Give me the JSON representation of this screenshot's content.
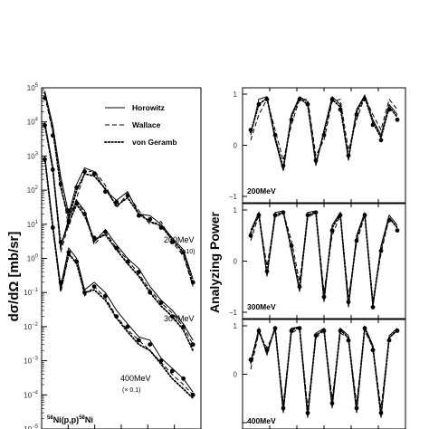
{
  "chart_data": [
    {
      "type": "line",
      "panel": "cross-section",
      "ylabel": "dσ/dΩ [mb/sr]",
      "yscale": "log",
      "ylim": [
        1e-05,
        100000.0
      ],
      "y_ticks": [
        {
          "base": "10",
          "exp": "5"
        },
        {
          "base": "10",
          "exp": "4"
        },
        {
          "base": "10",
          "exp": "3"
        },
        {
          "base": "10",
          "exp": "2"
        },
        {
          "base": "10",
          "exp": "1"
        },
        {
          "base": "10",
          "exp": "0"
        },
        {
          "base": "10",
          "exp": "−1"
        },
        {
          "base": "10",
          "exp": "−2"
        },
        {
          "base": "10",
          "exp": "−3"
        },
        {
          "base": "10",
          "exp": "−4"
        },
        {
          "base": "10",
          "exp": "−5"
        }
      ],
      "xlim": [
        0,
        1
      ],
      "reaction": {
        "pre": "58",
        "mid": "Ni(p,p)",
        "post": "58",
        "tail": "Ni"
      },
      "legend": {
        "placement": "top-right",
        "entries": [
          {
            "label": "Horowitz",
            "style": "solid"
          },
          {
            "label": "Wallace",
            "style": "dashed"
          },
          {
            "label": "von Geramb",
            "style": "dotted"
          }
        ]
      },
      "energy_labels": [
        {
          "text": "200MeV",
          "sub": "(×10)"
        },
        {
          "text": "300MeV",
          "sub": ""
        },
        {
          "text": "400MeV",
          "sub": "(× 0.1)"
        }
      ],
      "series": [
        {
          "energy": "200MeV",
          "x": [
            0.02,
            0.07,
            0.12,
            0.17,
            0.22,
            0.27,
            0.33,
            0.4,
            0.47,
            0.54,
            0.61,
            0.68,
            0.75,
            0.82,
            0.89,
            0.95
          ],
          "points": [
            50000,
            4000,
            150,
            25,
            120,
            350,
            300,
            90,
            45,
            70,
            18,
            14,
            8,
            3,
            1.5,
            0.2
          ],
          "horowitz": [
            80000,
            8000,
            250,
            20,
            150,
            450,
            350,
            100,
            50,
            90,
            20,
            18,
            10,
            4,
            1.8,
            0.25
          ],
          "wallace": [
            60000,
            5000,
            180,
            8,
            60,
            320,
            380,
            140,
            30,
            80,
            25,
            10,
            12,
            3,
            1.2,
            0.15
          ],
          "vongeramb": [
            70000,
            6000,
            120,
            15,
            100,
            300,
            260,
            110,
            35,
            60,
            20,
            12,
            9,
            3.5,
            1.5,
            0.18
          ]
        },
        {
          "energy": "300MeV",
          "x": [
            0.02,
            0.07,
            0.12,
            0.17,
            0.22,
            0.27,
            0.33,
            0.4,
            0.47,
            0.54,
            0.61,
            0.68,
            0.75,
            0.82,
            0.89,
            0.95
          ],
          "points": [
            8000,
            400,
            3,
            12,
            40,
            20,
            4,
            6,
            2,
            0.8,
            0.4,
            0.1,
            0.05,
            0.02,
            0.01,
            0.003
          ],
          "horowitz": [
            10000,
            500,
            2,
            15,
            50,
            25,
            3,
            7,
            2.5,
            1,
            0.5,
            0.15,
            0.06,
            0.03,
            0.012,
            0.004
          ],
          "wallace": [
            9000,
            450,
            1.5,
            10,
            45,
            22,
            2.5,
            6,
            2,
            0.9,
            0.35,
            0.12,
            0.05,
            0.025,
            0.01,
            0.003
          ],
          "vongeramb": [
            8500,
            420,
            2.5,
            11,
            38,
            18,
            3.5,
            5,
            1.8,
            0.7,
            0.3,
            0.1,
            0.04,
            0.02,
            0.008,
            0.002
          ]
        },
        {
          "energy": "400MeV",
          "x": [
            0.02,
            0.07,
            0.12,
            0.17,
            0.22,
            0.27,
            0.33,
            0.4,
            0.47,
            0.54,
            0.61,
            0.68,
            0.75,
            0.82,
            0.89,
            0.95
          ],
          "points": [
            800,
            8,
            0.2,
            1.5,
            0.8,
            0.1,
            0.15,
            0.08,
            0.02,
            0.01,
            0.004,
            0.003,
            0.001,
            0.0005,
            0.0003,
            0.0001
          ],
          "horowitz": [
            1000,
            10,
            0.15,
            2,
            1,
            0.12,
            0.2,
            0.1,
            0.03,
            0.012,
            0.005,
            0.004,
            0.0012,
            0.0006,
            0.0003,
            0.00012
          ],
          "wallace": [
            900,
            9,
            0.1,
            1.2,
            0.9,
            0.08,
            0.15,
            0.07,
            0.02,
            0.008,
            0.004,
            0.002,
            0.0009,
            0.0004,
            0.0002,
            0.0001
          ],
          "vongeramb": [
            850,
            8.5,
            0.12,
            1.4,
            0.7,
            0.1,
            0.12,
            0.06,
            0.018,
            0.007,
            0.003,
            0.002,
            0.0008,
            0.0003,
            0.00015,
            8e-05
          ]
        }
      ]
    },
    {
      "type": "line",
      "panel": "analyzing-power",
      "ylabel": "Analyzing Power",
      "ylim": [
        -1,
        1
      ],
      "y_ticks": [
        "1",
        "0",
        "−1"
      ],
      "xlim": [
        0,
        1
      ],
      "panels": [
        {
          "energy": "200MeV",
          "x": [
            0.05,
            0.1,
            0.15,
            0.2,
            0.25,
            0.3,
            0.35,
            0.4,
            0.45,
            0.5,
            0.55,
            0.6,
            0.65,
            0.7,
            0.75,
            0.8,
            0.85,
            0.9,
            0.95
          ],
          "points": [
            0.3,
            0.8,
            0.9,
            0.2,
            -0.4,
            0.5,
            0.9,
            0.8,
            -0.3,
            0.2,
            0.9,
            0.7,
            -0.2,
            0.6,
            0.9,
            0.4,
            0.1,
            0.7,
            0.5
          ],
          "horowitz": [
            0.2,
            0.9,
            0.95,
            0.1,
            -0.5,
            0.6,
            0.95,
            0.85,
            -0.4,
            0.3,
            0.95,
            0.8,
            -0.3,
            0.7,
            0.98,
            0.5,
            0.2,
            0.8,
            0.6
          ],
          "wallace": [
            0.1,
            0.6,
            0.9,
            0.3,
            -0.3,
            0.4,
            0.9,
            0.9,
            -0.2,
            0.1,
            0.85,
            0.9,
            -0.1,
            0.5,
            0.95,
            0.6,
            0.3,
            0.9,
            0.7
          ],
          "vongeramb": [
            0.25,
            0.8,
            0.92,
            0.15,
            -0.45,
            0.55,
            0.92,
            0.8,
            -0.35,
            0.25,
            0.9,
            0.75,
            -0.25,
            0.65,
            0.95,
            0.45,
            0.15,
            0.75,
            0.55
          ]
        },
        {
          "energy": "300MeV",
          "x": [
            0.05,
            0.1,
            0.15,
            0.2,
            0.25,
            0.3,
            0.35,
            0.4,
            0.45,
            0.5,
            0.55,
            0.6,
            0.65,
            0.7,
            0.75,
            0.8,
            0.85,
            0.9,
            0.95
          ],
          "points": [
            0.5,
            0.9,
            -0.2,
            0.9,
            0.95,
            0.3,
            -0.5,
            0.9,
            0.95,
            -0.7,
            0.6,
            0.9,
            -0.8,
            0.4,
            0.9,
            -0.9,
            0.2,
            0.8,
            0.6
          ],
          "horowitz": [
            0.6,
            0.95,
            -0.3,
            0.95,
            0.98,
            0.2,
            -0.6,
            0.95,
            0.98,
            -0.8,
            0.7,
            0.95,
            -0.9,
            0.5,
            0.95,
            -0.9,
            0.3,
            0.9,
            0.7
          ],
          "wallace": [
            0.4,
            0.9,
            -0.1,
            0.85,
            0.95,
            0.4,
            -0.4,
            0.85,
            0.95,
            -0.6,
            0.5,
            0.9,
            -0.7,
            0.35,
            0.9,
            -0.8,
            0.15,
            0.85,
            0.65
          ],
          "vongeramb": [
            0.55,
            0.92,
            -0.25,
            0.9,
            0.96,
            0.25,
            -0.55,
            0.9,
            0.96,
            -0.75,
            0.65,
            0.92,
            -0.85,
            0.45,
            0.92,
            -0.85,
            0.25,
            0.85,
            0.65
          ]
        },
        {
          "energy": "400MeV",
          "x": [
            0.05,
            0.1,
            0.15,
            0.2,
            0.25,
            0.3,
            0.35,
            0.4,
            0.45,
            0.5,
            0.55,
            0.6,
            0.65,
            0.7,
            0.75,
            0.8,
            0.85,
            0.9,
            0.95
          ],
          "points": [
            0.3,
            0.9,
            0.5,
            0.95,
            -0.7,
            0.9,
            0.95,
            -0.8,
            0.8,
            0.9,
            -0.6,
            0.9,
            0.7,
            -0.7,
            0.95,
            0.5,
            -0.8,
            0.7,
            0.9
          ],
          "horowitz": [
            0.2,
            0.95,
            0.4,
            0.98,
            -0.8,
            0.95,
            0.98,
            -0.9,
            0.85,
            0.95,
            -0.7,
            0.95,
            0.8,
            -0.8,
            0.98,
            0.6,
            -0.9,
            0.8,
            0.95
          ],
          "wallace": [
            0.1,
            0.85,
            0.55,
            0.9,
            -0.6,
            0.85,
            0.95,
            -0.7,
            0.75,
            0.9,
            -0.5,
            0.85,
            0.75,
            -0.6,
            0.9,
            0.55,
            -0.7,
            0.75,
            0.9
          ],
          "vongeramb": [
            0.25,
            0.9,
            0.45,
            0.96,
            -0.75,
            0.92,
            0.96,
            -0.85,
            0.8,
            0.92,
            -0.65,
            0.92,
            0.75,
            -0.75,
            0.96,
            0.55,
            -0.85,
            0.75,
            0.92
          ]
        }
      ]
    }
  ]
}
